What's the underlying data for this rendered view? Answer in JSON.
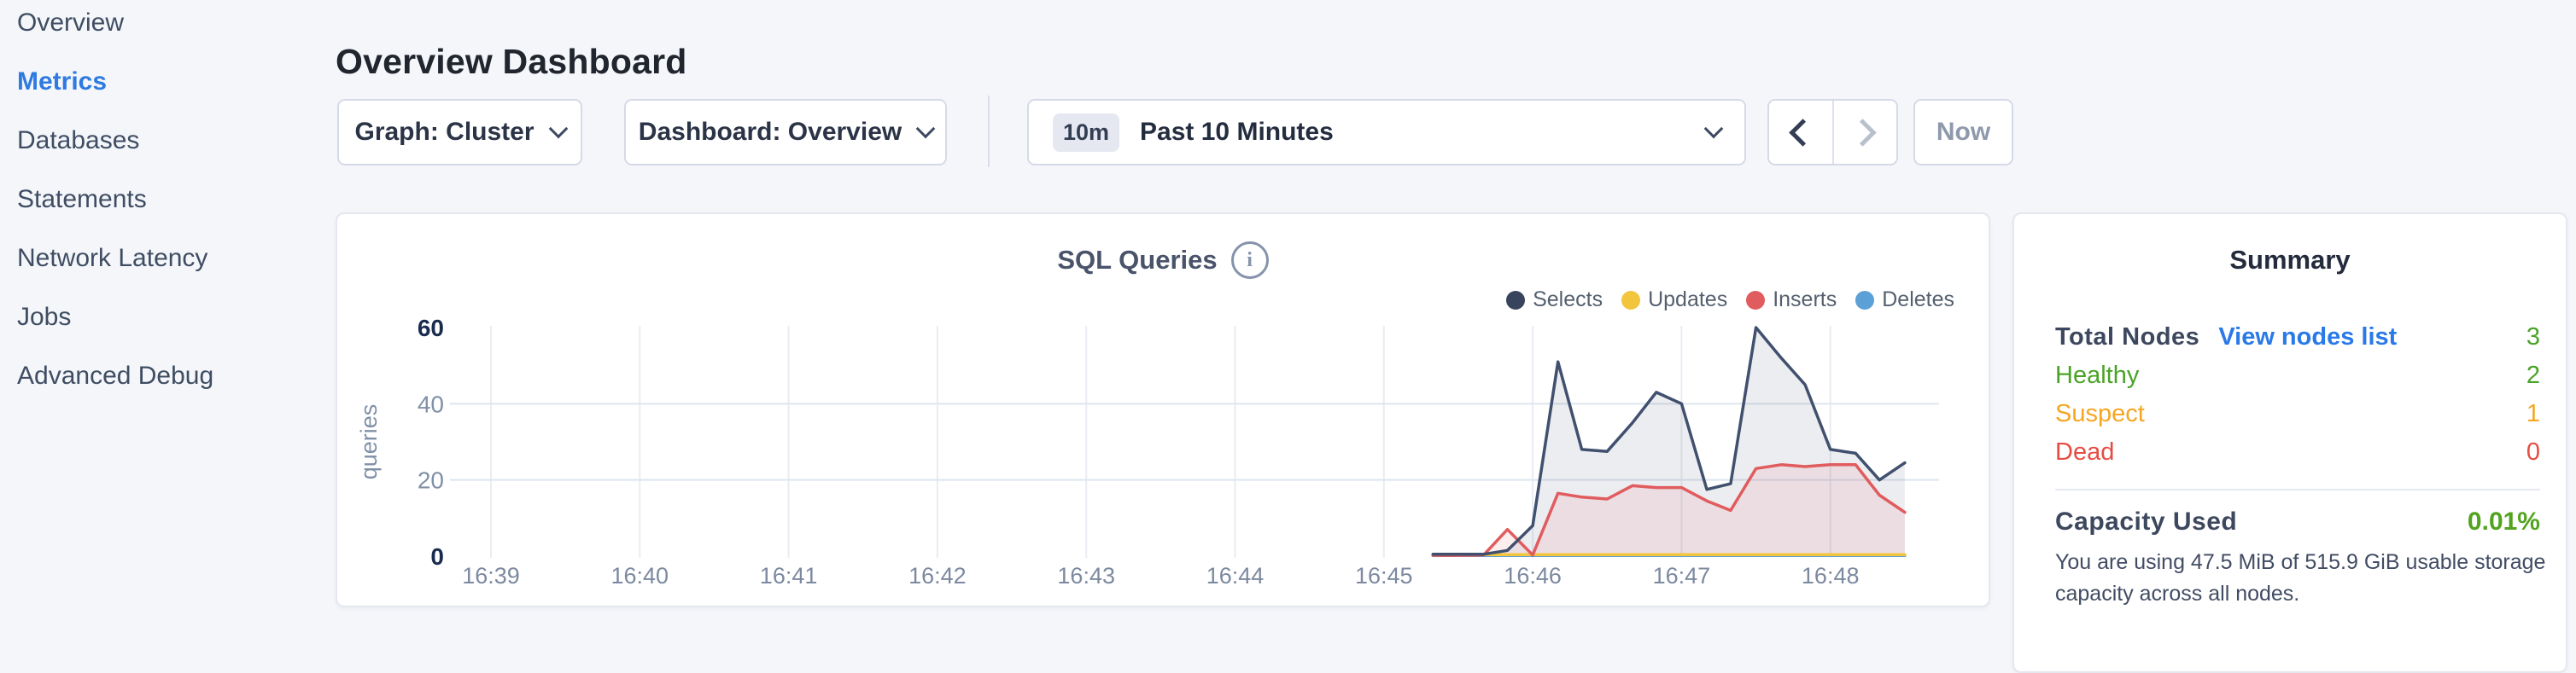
{
  "sidebar": {
    "items": [
      {
        "label": "Overview",
        "active": false
      },
      {
        "label": "Metrics",
        "active": true
      },
      {
        "label": "Databases",
        "active": false
      },
      {
        "label": "Statements",
        "active": false
      },
      {
        "label": "Network Latency",
        "active": false
      },
      {
        "label": "Jobs",
        "active": false
      },
      {
        "label": "Advanced Debug",
        "active": false
      }
    ]
  },
  "header": {
    "title": "Overview Dashboard"
  },
  "controls": {
    "graph_label": "Graph: Cluster",
    "dashboard_label": "Dashboard: Overview",
    "time_badge": "10m",
    "time_label": "Past 10 Minutes",
    "now_label": "Now"
  },
  "chart_data": {
    "type": "line",
    "title": "SQL Queries",
    "ylabel": "queries",
    "ylim": [
      0,
      60
    ],
    "y_ticks": [
      0,
      20,
      40,
      60
    ],
    "x_ticks": [
      "16:39",
      "16:40",
      "16:41",
      "16:42",
      "16:43",
      "16:44",
      "16:45",
      "16:46",
      "16:47",
      "16:48"
    ],
    "grid": true,
    "legend_position": "top-right",
    "t_minutes_after_1639": [
      6.33,
      6.5,
      6.67,
      6.83,
      7,
      7.17,
      7.33,
      7.5,
      7.67,
      7.83,
      8,
      8.17,
      8.33,
      8.5,
      8.67,
      8.83,
      9,
      9.17,
      9.33,
      9.5
    ],
    "series": [
      {
        "name": "Selects",
        "color": "#40506e",
        "dot": "#38445e",
        "fill": "rgba(64,80,110,0.10)",
        "values": [
          0.5,
          0.5,
          0.5,
          1.5,
          8,
          51,
          28,
          27.5,
          35,
          43,
          40,
          17.5,
          19,
          60,
          52,
          45,
          28,
          27,
          20,
          24.5
        ]
      },
      {
        "name": "Updates",
        "color": "#f2c53d",
        "dot": "#f2c53d",
        "fill": "none",
        "values": [
          0.4,
          0.4,
          0.4,
          0.4,
          0.4,
          0.4,
          0.4,
          0.4,
          0.4,
          0.4,
          0.4,
          0.4,
          0.4,
          0.4,
          0.4,
          0.4,
          0.4,
          0.4,
          0.4,
          0.4
        ]
      },
      {
        "name": "Inserts",
        "color": "#e05c5e",
        "dot": "#e05c5e",
        "fill": "rgba(224,92,94,0.10)",
        "values": [
          0.2,
          0.2,
          0.3,
          7,
          0.3,
          16.5,
          15.5,
          15,
          18.5,
          18,
          18,
          14.5,
          12,
          23,
          24,
          23.5,
          24,
          24,
          16,
          11.5
        ]
      },
      {
        "name": "Deletes",
        "color": "#5ba0d6",
        "dot": "#5ba0d6",
        "fill": "none",
        "values": [
          0.15,
          0.15,
          0.15,
          0.15,
          0.15,
          0.15,
          0.15,
          0.15,
          0.15,
          0.15,
          0.15,
          0.15,
          0.15,
          0.15,
          0.15,
          0.15,
          0.15,
          0.15,
          0.15,
          0.15
        ]
      }
    ]
  },
  "summary": {
    "title": "Summary",
    "rows": [
      {
        "label": "Total Nodes",
        "link": "View nodes list",
        "value": "3",
        "label_color": "#3d485e",
        "value_color": "#4aa327",
        "first": true
      },
      {
        "label": "Healthy",
        "value": "2",
        "label_color": "#4aa327",
        "value_color": "#4aa327",
        "first": false
      },
      {
        "label": "Suspect",
        "value": "1",
        "label_color": "#f5a623",
        "value_color": "#f5a623",
        "first": false
      },
      {
        "label": "Dead",
        "value": "0",
        "label_color": "#e64c42",
        "value_color": "#e64c42",
        "first": false
      }
    ],
    "capacity_label": "Capacity Used",
    "capacity_value": "0.01%",
    "capacity_description": "You are using 47.5 MiB of 515.9 GiB usable storage capacity across all nodes."
  }
}
